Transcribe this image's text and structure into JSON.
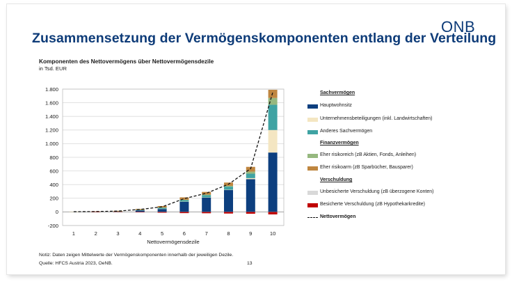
{
  "slide": {
    "title": "Zusammensetzung der Vermögenskomponenten entlang der Verteilung",
    "logo": "ONB",
    "page_number": "13"
  },
  "chart_data": {
    "type": "bar",
    "stacked": true,
    "title": "Komponenten des Nettovermögens über Nettovermögensdezile",
    "subtitle": "in Tsd. EUR",
    "xlabel": "Nettovermögensdezile",
    "ylabel": "",
    "categories": [
      "1",
      "2",
      "3",
      "4",
      "5",
      "6",
      "7",
      "8",
      "9",
      "10"
    ],
    "ylim": [
      -200,
      1800
    ],
    "yticks": [
      -200,
      0,
      200,
      400,
      600,
      800,
      1000,
      1200,
      1400,
      1600,
      1800
    ],
    "ytick_labels": [
      "-200",
      "0",
      "200",
      "400",
      "600",
      "800",
      "1.000",
      "1.200",
      "1.400",
      "1.600",
      "1.800"
    ],
    "legend_groups": [
      {
        "heading": "Sachvermögen",
        "series": [
          0,
          1,
          2
        ]
      },
      {
        "heading": "Finanzvermögen",
        "series": [
          3,
          4
        ]
      },
      {
        "heading": "Verschuldung",
        "series": [
          5,
          6
        ]
      }
    ],
    "series": [
      {
        "name": "Hauptwohnsitz",
        "color": "#0d3f7f",
        "values": [
          0,
          1,
          4,
          22,
          45,
          150,
          210,
          320,
          480,
          870
        ]
      },
      {
        "name": "Unternehmensbeteiligungen (inkl. Landwirtschaften)",
        "color": "#f4e6c2",
        "values": [
          0,
          0,
          0,
          0,
          1,
          2,
          3,
          5,
          15,
          330
        ]
      },
      {
        "name": "Anderes Sachvermögen",
        "color": "#3fa3a3",
        "values": [
          1,
          2,
          3,
          6,
          14,
          20,
          32,
          45,
          65,
          370
        ]
      },
      {
        "name": "Eher risikoreich (zB Aktien, Fonds, Anleihen)",
        "color": "#96b87f",
        "values": [
          0,
          0,
          1,
          2,
          4,
          6,
          8,
          12,
          30,
          100
        ]
      },
      {
        "name": "Eher risikoarm (zB Sparbücher, Bausparer)",
        "color": "#bf8640",
        "values": [
          2,
          4,
          8,
          13,
          22,
          35,
          40,
          48,
          70,
          120
        ]
      },
      {
        "name": "Unbesicherte Verschuldung (zB überzogene Konten)",
        "color": "#d9d9d9",
        "values": [
          -1,
          -1,
          -1,
          -1,
          -2,
          -2,
          -2,
          -2,
          -2,
          -2
        ]
      },
      {
        "name": "Besicherte Verschuldung (zB Hypothekarkredite)",
        "color": "#c00000",
        "values": [
          0,
          -1,
          -3,
          -6,
          -10,
          -16,
          -18,
          -22,
          -25,
          -35
        ]
      }
    ],
    "line": {
      "name": "Nettovermögen",
      "color": "#111111",
      "style": "dashed",
      "values": [
        2,
        5,
        12,
        36,
        74,
        195,
        273,
        406,
        633,
        1753
      ]
    },
    "note": "Notiz: Daten zeigen Mittelwerte der Vermögenskomponenten innerhalb der jeweiligen Dezile.",
    "source": "Quelle: HFCS Austria 2023, OeNB."
  }
}
